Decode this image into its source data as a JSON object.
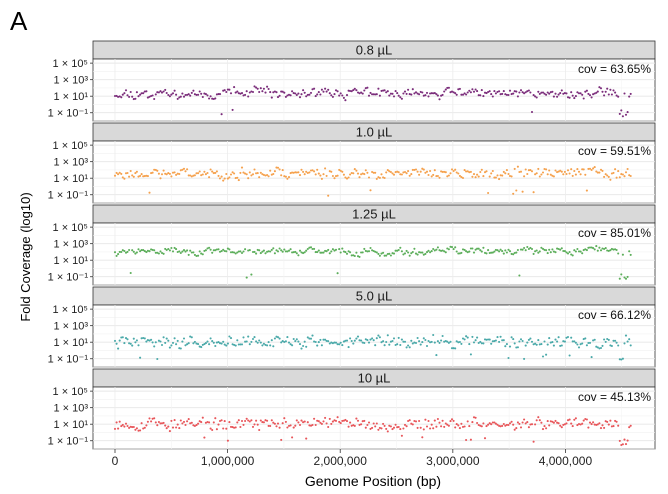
{
  "panel_letter": "A",
  "chart_data": {
    "type": "scatter",
    "xlabel": "Genome Position (bp)",
    "ylabel": "Fold Coverage (log10)",
    "xlim": [
      0,
      4600000
    ],
    "xticks": [
      0,
      1000000,
      2000000,
      3000000,
      4000000
    ],
    "xtick_labels": [
      "0",
      "1,000,000",
      "2,000,000",
      "3,000,000",
      "4,000,000"
    ],
    "yscale": "log10",
    "ylim_log10": [
      -2,
      5.5
    ],
    "yticks_log10": [
      5,
      3,
      1,
      -1
    ],
    "ytick_labels": [
      "1 × 10⁵",
      "1 × 10³",
      "1 × 10¹",
      "1 × 10⁻¹"
    ],
    "facets": [
      {
        "strip": "0.8 µL",
        "annotation": "cov = 63.65%",
        "color": "#7b2d7b",
        "seed": 11,
        "base_log10": 1.35,
        "spread": 0.55,
        "smooth": 0.55
      },
      {
        "strip": "1.0 µL",
        "annotation": "cov = 59.51%",
        "color": "#f5a14d",
        "seed": 23,
        "base_log10": 1.6,
        "spread": 0.6,
        "smooth": 0.5
      },
      {
        "strip": "1.25 µL",
        "annotation": "cov = 85.01%",
        "color": "#5cae5a",
        "seed": 37,
        "base_log10": 2.05,
        "spread": 0.4,
        "smooth": 0.6
      },
      {
        "strip": "5.0 µL",
        "annotation": "cov = 66.12%",
        "color": "#4aa9a9",
        "seed": 41,
        "base_log10": 1.05,
        "spread": 0.7,
        "smooth": 0.35
      },
      {
        "strip": "10 µL",
        "annotation": "cov = 45.13%",
        "color": "#e8565a",
        "seed": 53,
        "base_log10": 1.0,
        "spread": 0.75,
        "smooth": 0.3
      }
    ]
  }
}
